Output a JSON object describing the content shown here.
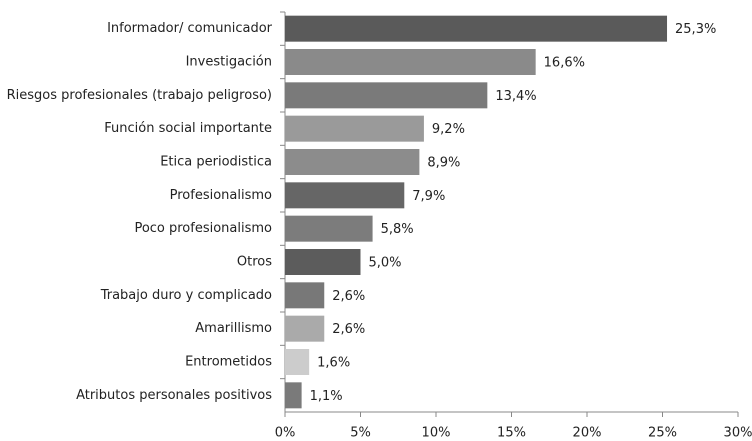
{
  "chart_data": {
    "type": "bar",
    "orientation": "horizontal",
    "categories": [
      "Informador/ comunicador",
      "Investigación",
      "Riesgos profesionales (trabajo peligroso)",
      "Función social importante",
      "Etica periodistica",
      "Profesionalismo",
      "Poco profesionalismo",
      "Otros",
      "Trabajo duro y complicado",
      "Amarillismo",
      "Entrometidos",
      "Atributos personales positivos"
    ],
    "values": [
      25.3,
      16.6,
      13.4,
      9.2,
      8.9,
      7.9,
      5.8,
      5.0,
      2.6,
      2.6,
      1.6,
      1.1
    ],
    "value_labels": [
      "25,3%",
      "16,6%",
      "13,4%",
      "9,2%",
      "8,9%",
      "7,9%",
      "5,8%",
      "5,0%",
      "2,6%",
      "2,6%",
      "1,6%",
      "1,1%"
    ],
    "colors": [
      "#5a5a5a",
      "#8a8a8a",
      "#7a7a7a",
      "#9a9a9a",
      "#8c8c8c",
      "#666666",
      "#7c7c7c",
      "#5c5c5c",
      "#787878",
      "#aaaaaa",
      "#cccccc",
      "#7a7a7a"
    ],
    "xlim": [
      0,
      30
    ],
    "xticks": [
      {
        "value": 0,
        "label": "0%"
      },
      {
        "value": 5,
        "label": "5%"
      },
      {
        "value": 10,
        "label": "10%"
      },
      {
        "value": 15,
        "label": "15%"
      },
      {
        "value": 20,
        "label": "20%"
      },
      {
        "value": 25,
        "label": "25%"
      },
      {
        "value": 30,
        "label": "30%"
      }
    ]
  }
}
